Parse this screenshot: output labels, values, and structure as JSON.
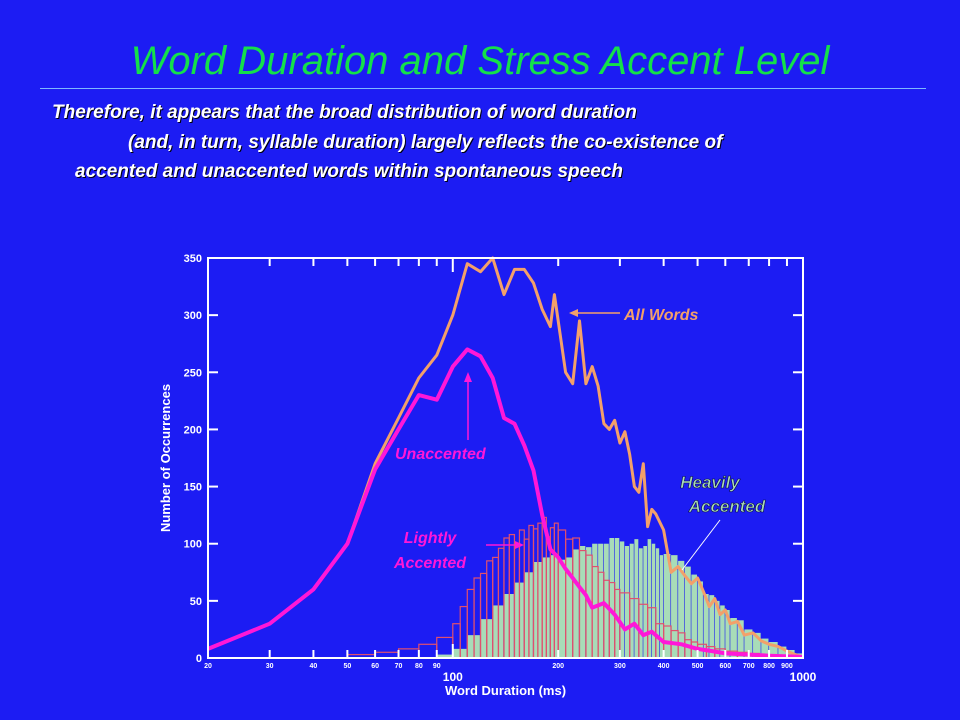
{
  "slide": {
    "title": "Word Duration and Stress Accent Level",
    "body_lines": [
      "Therefore, it appears that the broad distribution of word duration",
      "(and, in turn, syllable duration) largely reflects the co-existence of",
      "accented and unaccented words within spontaneous speech"
    ]
  },
  "colors": {
    "background": "#1c1cf3",
    "title": "#14e04a",
    "all_words": "#f3a06a",
    "unaccented": "#ff17d8",
    "lightly_accented": "#e0506e",
    "heavily_accented": "#a8dcb8"
  },
  "chart_data": {
    "type": "line",
    "xlabel": "Word Duration (ms)",
    "ylabel": "Number of Occurrences",
    "x_scale": "log",
    "xlim": [
      20,
      1000
    ],
    "ylim": [
      0,
      350
    ],
    "grid": false,
    "x_minor_ticks": [
      20,
      30,
      40,
      50,
      60,
      70,
      80,
      90,
      200,
      300,
      400,
      500,
      600,
      700,
      800,
      900
    ],
    "x_major_ticks": [
      100,
      1000
    ],
    "y_ticks": [
      0,
      50,
      100,
      150,
      200,
      250,
      300,
      350
    ],
    "annotations": [
      {
        "text": "All Words",
        "series": "All Words"
      },
      {
        "text": "Unaccented",
        "series": "Unaccented"
      },
      {
        "text": "Lightly Accented",
        "series": "Lightly Accented"
      },
      {
        "text": "Heavily Accented",
        "series": "Heavily Accented"
      }
    ],
    "series": [
      {
        "name": "All Words",
        "style": "line",
        "points": [
          [
            20,
            8
          ],
          [
            30,
            30
          ],
          [
            40,
            60
          ],
          [
            50,
            100
          ],
          [
            60,
            170
          ],
          [
            70,
            210
          ],
          [
            80,
            245
          ],
          [
            90,
            265
          ],
          [
            100,
            300
          ],
          [
            110,
            345
          ],
          [
            120,
            338
          ],
          [
            130,
            350
          ],
          [
            140,
            318
          ],
          [
            150,
            340
          ],
          [
            160,
            340
          ],
          [
            170,
            328
          ],
          [
            180,
            305
          ],
          [
            190,
            290
          ],
          [
            195,
            318
          ],
          [
            200,
            295
          ],
          [
            210,
            250
          ],
          [
            220,
            240
          ],
          [
            230,
            295
          ],
          [
            240,
            240
          ],
          [
            250,
            255
          ],
          [
            260,
            238
          ],
          [
            270,
            205
          ],
          [
            280,
            200
          ],
          [
            290,
            208
          ],
          [
            300,
            188
          ],
          [
            310,
            198
          ],
          [
            320,
            178
          ],
          [
            330,
            150
          ],
          [
            340,
            145
          ],
          [
            350,
            170
          ],
          [
            360,
            115
          ],
          [
            370,
            130
          ],
          [
            380,
            126
          ],
          [
            400,
            112
          ],
          [
            420,
            75
          ],
          [
            440,
            80
          ],
          [
            460,
            72
          ],
          [
            480,
            65
          ],
          [
            500,
            70
          ],
          [
            520,
            58
          ],
          [
            540,
            45
          ],
          [
            560,
            52
          ],
          [
            580,
            38
          ],
          [
            600,
            42
          ],
          [
            620,
            30
          ],
          [
            650,
            32
          ],
          [
            680,
            20
          ],
          [
            720,
            22
          ],
          [
            760,
            15
          ],
          [
            800,
            12
          ],
          [
            850,
            10
          ],
          [
            900,
            6
          ],
          [
            950,
            3
          ],
          [
            1000,
            1
          ]
        ]
      },
      {
        "name": "Unaccented",
        "style": "line",
        "points": [
          [
            20,
            8
          ],
          [
            30,
            30
          ],
          [
            40,
            60
          ],
          [
            50,
            100
          ],
          [
            60,
            165
          ],
          [
            70,
            200
          ],
          [
            80,
            230
          ],
          [
            90,
            226
          ],
          [
            100,
            255
          ],
          [
            110,
            270
          ],
          [
            120,
            264
          ],
          [
            130,
            245
          ],
          [
            140,
            210
          ],
          [
            150,
            205
          ],
          [
            160,
            186
          ],
          [
            170,
            164
          ],
          [
            180,
            125
          ],
          [
            190,
            95
          ],
          [
            200,
            88
          ],
          [
            210,
            78
          ],
          [
            220,
            70
          ],
          [
            230,
            62
          ],
          [
            240,
            55
          ],
          [
            250,
            44
          ],
          [
            270,
            48
          ],
          [
            290,
            38
          ],
          [
            310,
            25
          ],
          [
            330,
            30
          ],
          [
            350,
            20
          ],
          [
            370,
            23
          ],
          [
            400,
            14
          ],
          [
            450,
            12
          ],
          [
            500,
            8
          ],
          [
            550,
            6
          ],
          [
            600,
            4
          ],
          [
            700,
            3
          ],
          [
            800,
            2
          ],
          [
            1000,
            1
          ]
        ]
      },
      {
        "name": "Lightly Accented",
        "style": "bar",
        "bins": [
          [
            50,
            3
          ],
          [
            60,
            5
          ],
          [
            70,
            8
          ],
          [
            80,
            12
          ],
          [
            90,
            18
          ],
          [
            100,
            30
          ],
          [
            105,
            45
          ],
          [
            110,
            60
          ],
          [
            115,
            70
          ],
          [
            120,
            74
          ],
          [
            125,
            85
          ],
          [
            130,
            88
          ],
          [
            135,
            96
          ],
          [
            140,
            105
          ],
          [
            145,
            108
          ],
          [
            150,
            100
          ],
          [
            155,
            112
          ],
          [
            160,
            104
          ],
          [
            165,
            116
          ],
          [
            170,
            113
          ],
          [
            175,
            118
          ],
          [
            180,
            123
          ],
          [
            185,
            106
          ],
          [
            190,
            114
          ],
          [
            195,
            118
          ],
          [
            200,
            112
          ],
          [
            210,
            104
          ],
          [
            220,
            105
          ],
          [
            230,
            94
          ],
          [
            240,
            90
          ],
          [
            250,
            80
          ],
          [
            260,
            75
          ],
          [
            270,
            68
          ],
          [
            280,
            66
          ],
          [
            290,
            60
          ],
          [
            300,
            57
          ],
          [
            320,
            52
          ],
          [
            340,
            47
          ],
          [
            360,
            44
          ],
          [
            380,
            30
          ],
          [
            400,
            28
          ],
          [
            420,
            24
          ],
          [
            440,
            22
          ],
          [
            460,
            16
          ],
          [
            480,
            14
          ],
          [
            500,
            12
          ],
          [
            530,
            10
          ],
          [
            560,
            8
          ],
          [
            600,
            6
          ],
          [
            650,
            5
          ],
          [
            700,
            4
          ],
          [
            750,
            3
          ],
          [
            800,
            2
          ],
          [
            900,
            1
          ]
        ]
      },
      {
        "name": "Heavily Accented",
        "style": "bar",
        "bins": [
          [
            90,
            3
          ],
          [
            100,
            8
          ],
          [
            110,
            20
          ],
          [
            120,
            34
          ],
          [
            130,
            46
          ],
          [
            140,
            56
          ],
          [
            150,
            66
          ],
          [
            160,
            75
          ],
          [
            170,
            84
          ],
          [
            180,
            88
          ],
          [
            190,
            90
          ],
          [
            200,
            86
          ],
          [
            210,
            88
          ],
          [
            220,
            95
          ],
          [
            230,
            98
          ],
          [
            240,
            97
          ],
          [
            250,
            100
          ],
          [
            260,
            100
          ],
          [
            270,
            100
          ],
          [
            280,
            105
          ],
          [
            290,
            105
          ],
          [
            300,
            102
          ],
          [
            310,
            98
          ],
          [
            320,
            100
          ],
          [
            330,
            104
          ],
          [
            340,
            96
          ],
          [
            350,
            98
          ],
          [
            360,
            104
          ],
          [
            370,
            100
          ],
          [
            380,
            96
          ],
          [
            390,
            90
          ],
          [
            400,
            91
          ],
          [
            420,
            90
          ],
          [
            440,
            85
          ],
          [
            460,
            80
          ],
          [
            480,
            73
          ],
          [
            500,
            67
          ],
          [
            520,
            56
          ],
          [
            540,
            55
          ],
          [
            560,
            50
          ],
          [
            580,
            46
          ],
          [
            600,
            42
          ],
          [
            620,
            35
          ],
          [
            650,
            33
          ],
          [
            680,
            25
          ],
          [
            720,
            22
          ],
          [
            760,
            17
          ],
          [
            800,
            14
          ],
          [
            850,
            10
          ],
          [
            900,
            7
          ],
          [
            950,
            4
          ]
        ]
      }
    ]
  }
}
